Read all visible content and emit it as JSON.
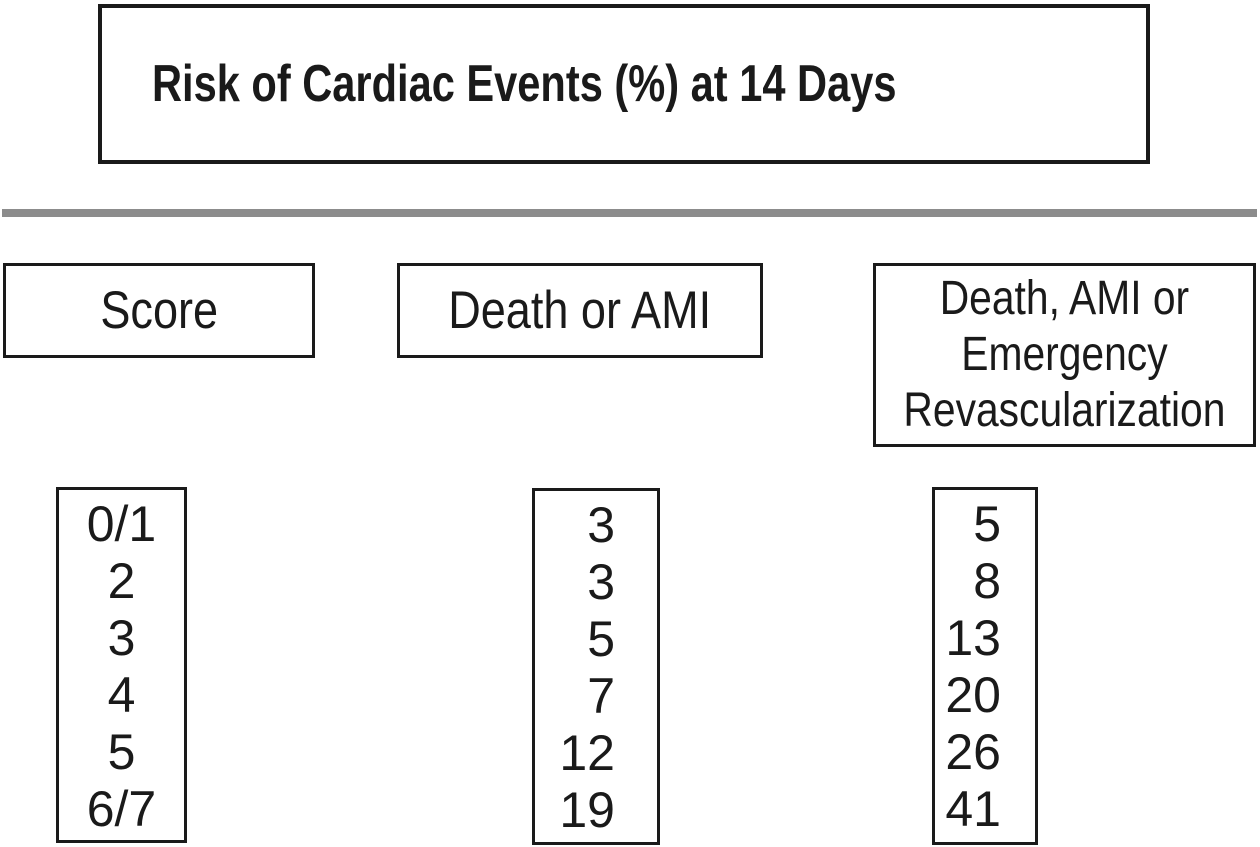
{
  "title": "Risk of Cardiac Events (%) at 14 Days",
  "colors": {
    "ink": "#1a1a1a",
    "divider": "#8c8c8c",
    "background": "#ffffff"
  },
  "columns": [
    {
      "header": "Score",
      "values": [
        "0/1",
        "2",
        "3",
        "4",
        "5",
        "6/7"
      ]
    },
    {
      "header": "Death or AMI",
      "values": [
        "3",
        "3",
        "5",
        "7",
        "12",
        "19"
      ]
    },
    {
      "header": "Death, AMI or Emergency Revascularization",
      "header_lines": [
        "Death, AMI or",
        "Emergency",
        "Revascularization"
      ],
      "values": [
        "5",
        "8",
        "13",
        "20",
        "26",
        "41"
      ]
    }
  ],
  "chart_data": {
    "type": "table",
    "title": "Risk of Cardiac Events (%) at 14 Days",
    "column_headers": [
      "Score",
      "Death or AMI",
      "Death, AMI or Emergency Revascularization"
    ],
    "categories": [
      "0/1",
      "2",
      "3",
      "4",
      "5",
      "6/7"
    ],
    "series": [
      {
        "name": "Death or AMI",
        "values": [
          3,
          3,
          5,
          7,
          12,
          19
        ]
      },
      {
        "name": "Death, AMI or Emergency Revascularization",
        "values": [
          5,
          8,
          13,
          20,
          26,
          41
        ]
      }
    ],
    "layout_hints": {
      "unit": "percent",
      "grid": false,
      "presentation": "boxed columns with title box and gray divider bar"
    }
  }
}
